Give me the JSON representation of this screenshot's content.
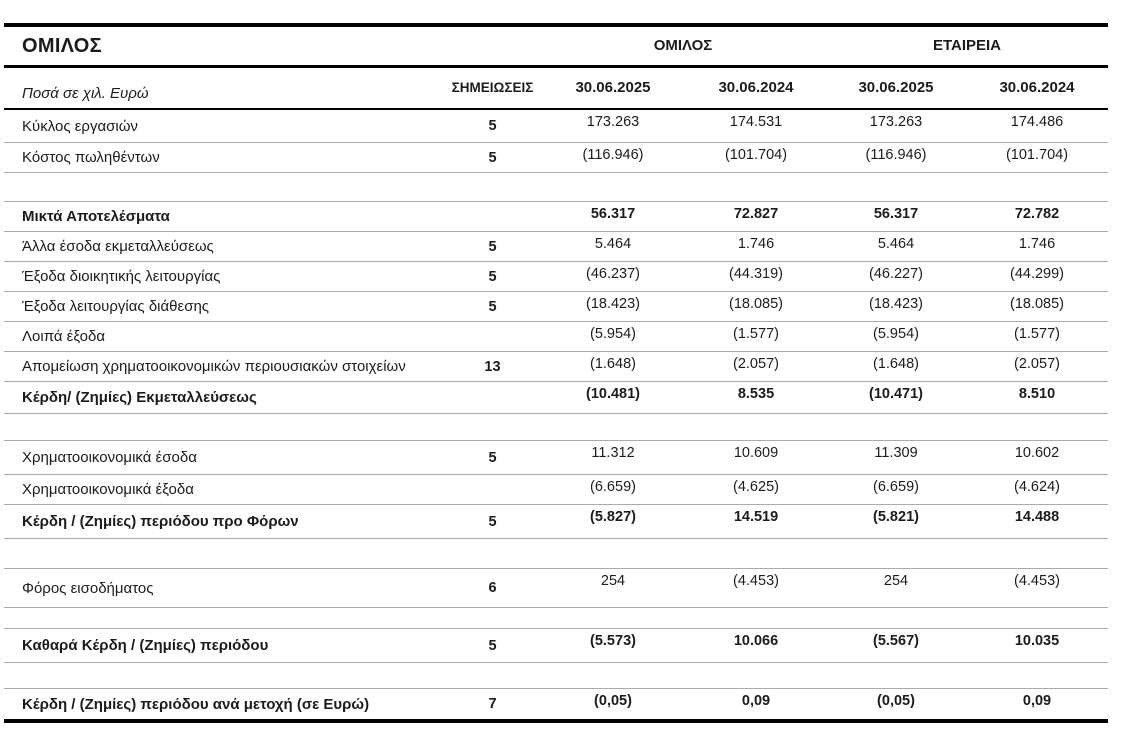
{
  "title": "ΟΜΙΛΟΣ",
  "colors": {
    "background": "#ffffff",
    "text": "#1c1c1c",
    "line_heavy": "#000000",
    "line_light": "#ababab"
  },
  "table": {
    "unit_label": "Ποσά σε χιλ. Ευρώ",
    "notes_header": "ΣΗΜΕΙΩΣΕΙΣ",
    "groups": [
      {
        "label": "ΟΜΙΛΟΣ",
        "periods": [
          "30.06.2025",
          "30.06.2024"
        ]
      },
      {
        "label": "ΕΤΑΙΡΕΙΑ",
        "periods": [
          "30.06.2025",
          "30.06.2024"
        ]
      }
    ],
    "rows": [
      {
        "label": "Κύκλος εργασιών",
        "note": "5",
        "values": [
          "173.263",
          "174.531",
          "173.263",
          "174.486"
        ],
        "bold": false
      },
      {
        "label": "Κόστος πωληθέντων",
        "note": "5",
        "values": [
          "(116.946)",
          "(101.704)",
          "(116.946)",
          "(101.704)"
        ],
        "bold": false
      },
      {
        "type": "spacer"
      },
      {
        "label": "Μικτά Αποτελέσματα",
        "note": "",
        "values": [
          "56.317",
          "72.827",
          "56.317",
          "72.782"
        ],
        "bold": true
      },
      {
        "label": "Άλλα έσοδα εκμεταλλεύσεως",
        "note": "5",
        "values": [
          "5.464",
          "1.746",
          "5.464",
          "1.746"
        ],
        "bold": false
      },
      {
        "label": "Έξοδα διοικητικής λειτουργίας",
        "note": "5",
        "values": [
          "(46.237)",
          "(44.319)",
          "(46.227)",
          "(44.299)"
        ],
        "bold": false
      },
      {
        "label": "Έξοδα  λειτουργίας διάθεσης",
        "note": "5",
        "values": [
          "(18.423)",
          "(18.085)",
          "(18.423)",
          "(18.085)"
        ],
        "bold": false
      },
      {
        "label": "Λοιπά  έξοδα",
        "note": "",
        "values": [
          "(5.954)",
          "(1.577)",
          "(5.954)",
          "(1.577)"
        ],
        "bold": false
      },
      {
        "label": "Απομείωση χρηματοοικονομικών περιουσιακών στοιχείων",
        "note": "13",
        "values": [
          "(1.648)",
          "(2.057)",
          "(1.648)",
          "(2.057)"
        ],
        "bold": false
      },
      {
        "label": "Κέρδη/ (Ζημίες) Εκμεταλλεύσεως",
        "note": "",
        "values": [
          "(10.481)",
          "8.535",
          "(10.471)",
          "8.510"
        ],
        "bold": true
      },
      {
        "type": "spacer"
      },
      {
        "label": "Χρηματοοικονομικά έσοδα",
        "note": "5",
        "values": [
          "11.312",
          "10.609",
          "11.309",
          "10.602"
        ],
        "bold": false
      },
      {
        "label": "Χρηματοοικονομικά έξοδα",
        "note": "",
        "values": [
          "(6.659)",
          "(4.625)",
          "(6.659)",
          "(4.624)"
        ],
        "bold": false
      },
      {
        "label": "Κέρδη / (Ζημίες) περιόδου προ Φόρων",
        "note": "5",
        "values": [
          "(5.827)",
          "14.519",
          "(5.821)",
          "14.488"
        ],
        "bold": true
      },
      {
        "type": "spacer"
      },
      {
        "label": "Φόρος εισοδήματος",
        "note": "6",
        "values": [
          "254",
          "(4.453)",
          "254",
          "(4.453)"
        ],
        "bold": false
      },
      {
        "type": "spacer"
      },
      {
        "label": "Καθαρά Κέρδη / (Ζημίες) περιόδου",
        "note": "5",
        "values": [
          "(5.573)",
          "10.066",
          "(5.567)",
          "10.035"
        ],
        "bold": true
      },
      {
        "type": "spacer"
      },
      {
        "label": "Κέρδη / (Ζημίες) περιόδου ανά μετοχή (σε Ευρώ)",
        "note": "7",
        "values": [
          "(0,05)",
          "0,09",
          "(0,05)",
          "0,09"
        ],
        "bold": true
      }
    ]
  }
}
